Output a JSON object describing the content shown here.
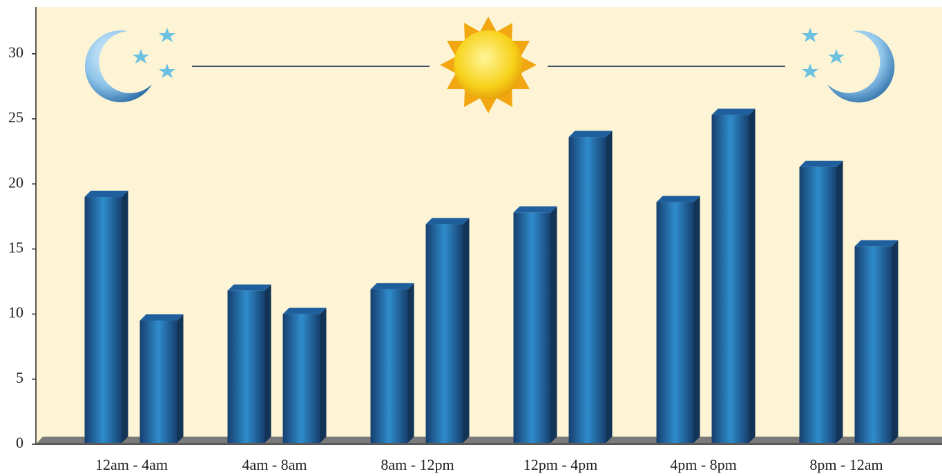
{
  "chart_data": {
    "type": "bar",
    "categories": [
      "12am - 4am",
      "4am - 8am",
      "8am - 12pm",
      "12pm - 4pm",
      "4pm - 8pm",
      "8pm - 12am"
    ],
    "series": [
      {
        "color": "#1f5f9e",
        "values": [
          19.0,
          11.8,
          11.9,
          17.8,
          18.6,
          21.3
        ]
      },
      {
        "color": "#1f5f9e",
        "values": [
          9.5,
          10.0,
          16.9,
          23.6,
          25.3,
          15.2
        ]
      }
    ],
    "ylim": [
      0,
      33.6
    ],
    "yticks": [
      0,
      5,
      10,
      15,
      20,
      25,
      30
    ]
  }
}
